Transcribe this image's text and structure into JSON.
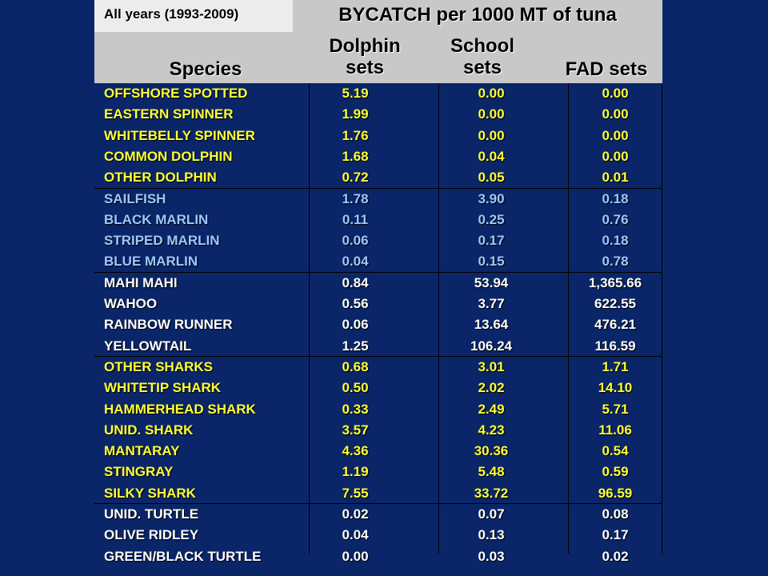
{
  "header": {
    "period": "All years (1993-2009)",
    "title": "BYCATCH per 1000 MT of tuna",
    "col_species": "Species",
    "col_dolphin": "Dolphin sets",
    "col_school": "School sets",
    "col_fad": "FAD sets"
  },
  "colors": {
    "background": "#0a2669",
    "header_bg": "#c8c8c8",
    "yellow": "#ffff33",
    "light_blue": "#9ec8ff",
    "white": "#ffffff"
  },
  "rows": [
    {
      "species": "OFFSHORE SPOTTED",
      "dolphin": "5.19",
      "school": "0.00",
      "fad": "0.00",
      "group": "dolphins"
    },
    {
      "species": "EASTERN SPINNER",
      "dolphin": "1.99",
      "school": "0.00",
      "fad": "0.00",
      "group": "dolphins"
    },
    {
      "species": "WHITEBELLY SPINNER",
      "dolphin": "1.76",
      "school": "0.00",
      "fad": "0.00",
      "group": "dolphins"
    },
    {
      "species": "COMMON DOLPHIN",
      "dolphin": "1.68",
      "school": "0.04",
      "fad": "0.00",
      "group": "dolphins"
    },
    {
      "species": "OTHER DOLPHIN",
      "dolphin": "0.72",
      "school": "0.05",
      "fad": "0.01",
      "group": "dolphins"
    },
    {
      "species": "SAILFISH",
      "dolphin": "1.78",
      "school": "3.90",
      "fad": "0.18",
      "group": "billfish"
    },
    {
      "species": "BLACK MARLIN",
      "dolphin": "0.11",
      "school": "0.25",
      "fad": "0.76",
      "group": "billfish"
    },
    {
      "species": "STRIPED MARLIN",
      "dolphin": "0.06",
      "school": "0.17",
      "fad": "0.18",
      "group": "billfish"
    },
    {
      "species": "BLUE MARLIN",
      "dolphin": "0.04",
      "school": "0.15",
      "fad": "0.78",
      "group": "billfish"
    },
    {
      "species": "MAHI MAHI",
      "dolphin": "0.84",
      "school": "53.94",
      "fad": "1,365.66",
      "group": "fish"
    },
    {
      "species": "WAHOO",
      "dolphin": "0.56",
      "school": "3.77",
      "fad": "622.55",
      "group": "fish"
    },
    {
      "species": "RAINBOW RUNNER",
      "dolphin": "0.06",
      "school": "13.64",
      "fad": "476.21",
      "group": "fish"
    },
    {
      "species": "YELLOWTAIL",
      "dolphin": "1.25",
      "school": "106.24",
      "fad": "116.59",
      "group": "fish"
    },
    {
      "species": "OTHER SHARKS",
      "dolphin": "0.68",
      "school": "3.01",
      "fad": "1.71",
      "group": "sharks"
    },
    {
      "species": "WHITETIP SHARK",
      "dolphin": "0.50",
      "school": "2.02",
      "fad": "14.10",
      "group": "sharks"
    },
    {
      "species": "HAMMERHEAD SHARK",
      "dolphin": "0.33",
      "school": "2.49",
      "fad": "5.71",
      "group": "sharks"
    },
    {
      "species": "UNID. SHARK",
      "dolphin": "3.57",
      "school": "4.23",
      "fad": "11.06",
      "group": "sharks"
    },
    {
      "species": "MANTARAY",
      "dolphin": "4.36",
      "school": "30.36",
      "fad": "0.54",
      "group": "sharks"
    },
    {
      "species": "STINGRAY",
      "dolphin": "1.19",
      "school": "5.48",
      "fad": "0.59",
      "group": "sharks"
    },
    {
      "species": "SILKY SHARK",
      "dolphin": "7.55",
      "school": "33.72",
      "fad": "96.59",
      "group": "sharks"
    },
    {
      "species": "UNID. TURTLE",
      "dolphin": "0.02",
      "school": "0.07",
      "fad": "0.08",
      "group": "turtles"
    },
    {
      "species": "OLIVE RIDLEY",
      "dolphin": "0.04",
      "school": "0.13",
      "fad": "0.17",
      "group": "turtles"
    },
    {
      "species": "GREEN/BLACK TURTLE",
      "dolphin": "0.00",
      "school": "0.03",
      "fad": "0.02",
      "group": "turtles"
    }
  ]
}
